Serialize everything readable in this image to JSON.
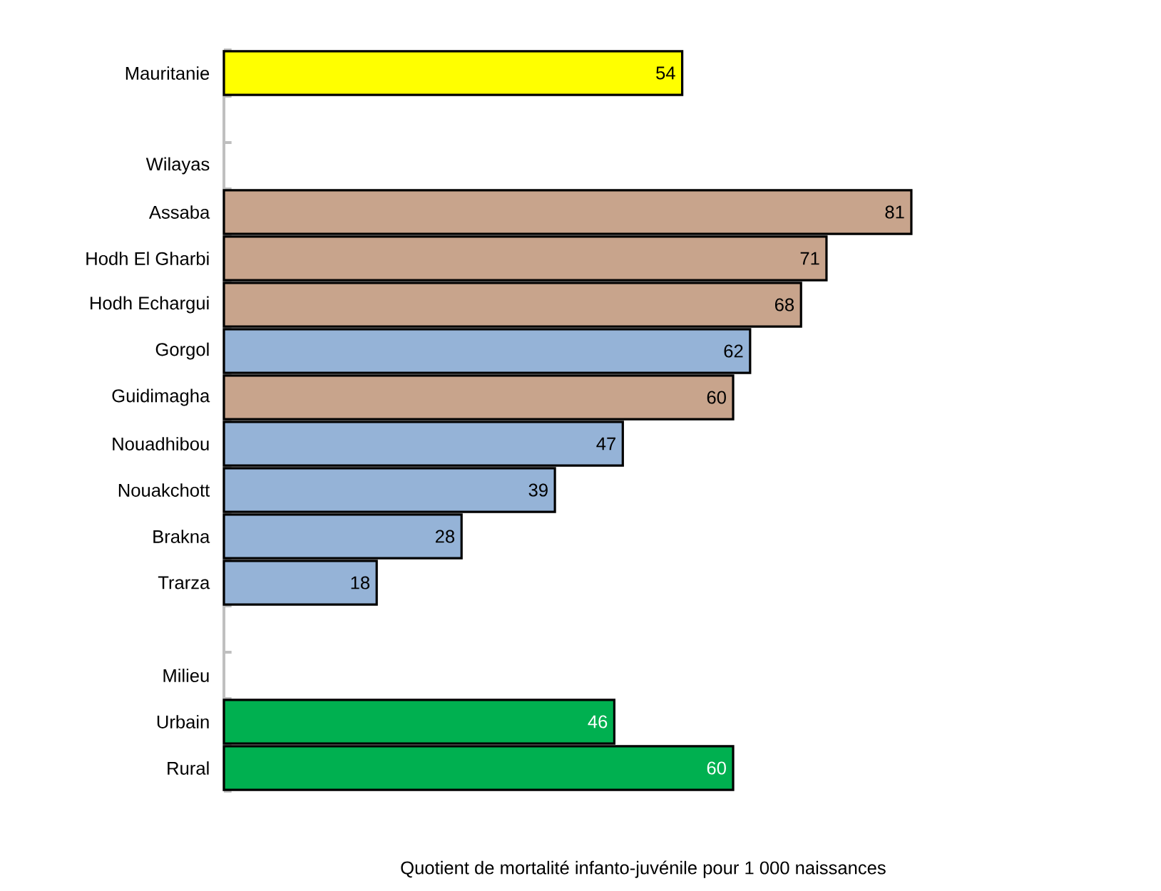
{
  "chart_data": {
    "type": "bar",
    "orientation": "horizontal",
    "xlabel": "Quotient de mortalité infanto-juvénile pour 1 000 naissances",
    "categories": [
      "Mauritanie",
      null,
      "Wilayas",
      "Assaba",
      "Hodh El Gharbi",
      "Hodh Echargui",
      "Gorgol",
      "Guidimagha",
      "Nouadhibou",
      "Nouakchott",
      "Brakna",
      "Trarza",
      null,
      "Milieu",
      "Urbain",
      "Rural"
    ],
    "values": [
      54,
      null,
      null,
      81,
      71,
      68,
      62,
      60,
      47,
      39,
      28,
      18,
      null,
      null,
      46,
      60
    ],
    "colors": [
      "#ffff00",
      null,
      null,
      "#c8a48c",
      "#c8a48c",
      "#c8a48c",
      "#95b3d7",
      "#c8a48c",
      "#95b3d7",
      "#95b3d7",
      "#95b3d7",
      "#95b3d7",
      null,
      null,
      "#00b050",
      "#00b050"
    ],
    "data_labels": true,
    "tick_labels": "y"
  }
}
